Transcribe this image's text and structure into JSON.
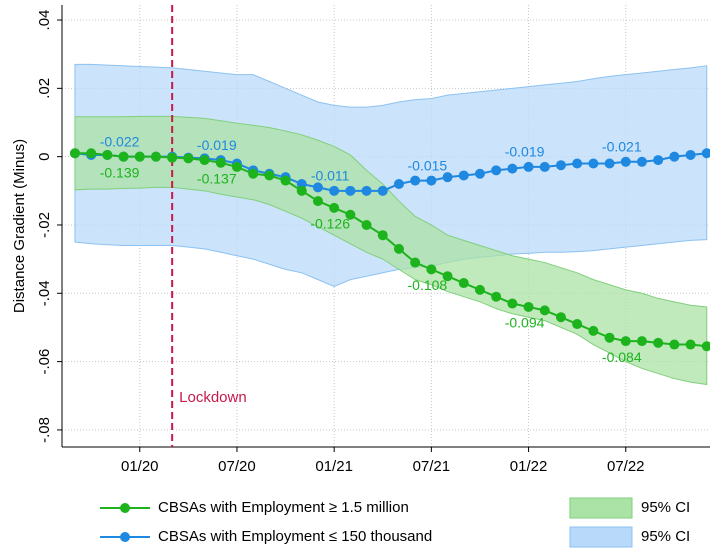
{
  "chart_data": {
    "type": "line",
    "ylabel": "Distance Gradient (Minus)",
    "x": [
      -4,
      -3,
      -2,
      -1,
      0,
      1,
      2,
      3,
      4,
      5,
      6,
      7,
      8,
      9,
      10,
      11,
      12,
      13,
      14,
      15,
      16,
      17,
      18,
      19,
      20,
      21,
      22,
      23,
      24,
      25,
      26,
      27,
      28,
      29,
      30,
      31,
      32,
      33,
      34,
      35
    ],
    "xlim": [
      -4.8,
      35.2
    ],
    "xticks": [
      {
        "value": 0,
        "label": "01/20"
      },
      {
        "value": 6,
        "label": "07/20"
      },
      {
        "value": 12,
        "label": "01/21"
      },
      {
        "value": 18,
        "label": "07/21"
      },
      {
        "value": 24,
        "label": "01/22"
      },
      {
        "value": 30,
        "label": "07/22"
      }
    ],
    "ylim": [
      -0.085,
      0.0444
    ],
    "yticks": [
      {
        "value": 0.04,
        "label": ".04"
      },
      {
        "value": 0.02,
        "label": ".02"
      },
      0,
      {
        "value": -0.02,
        "label": "-.02"
      },
      {
        "value": -0.04,
        "label": "-.04"
      },
      {
        "value": -0.06,
        "label": "-.06"
      },
      {
        "value": -0.08,
        "label": "-.08"
      }
    ],
    "grid": true,
    "legend": "bottom",
    "vline": {
      "x": 2,
      "label": "Lockdown",
      "color": "#c8194b"
    },
    "bands": [
      {
        "name": "95% CI",
        "color": "#b9d9fa",
        "edge": "#8cc2f2",
        "upper": [
          0.027,
          0.027,
          0.0268,
          0.0266,
          0.0264,
          0.0262,
          0.026,
          0.0255,
          0.025,
          0.0245,
          0.024,
          0.024,
          0.022,
          0.02,
          0.018,
          0.016,
          0.015,
          0.0145,
          0.0145,
          0.015,
          0.016,
          0.0167,
          0.017,
          0.018,
          0.0185,
          0.019,
          0.0195,
          0.02,
          0.0205,
          0.021,
          0.0215,
          0.022,
          0.0228,
          0.0235,
          0.024,
          0.0245,
          0.025,
          0.0255,
          0.026,
          0.0266
        ],
        "lower": [
          -0.025,
          -0.0255,
          -0.0258,
          -0.026,
          -0.026,
          -0.026,
          -0.026,
          -0.0265,
          -0.027,
          -0.028,
          -0.029,
          -0.03,
          -0.0315,
          -0.033,
          -0.034,
          -0.036,
          -0.038,
          -0.036,
          -0.035,
          -0.034,
          -0.033,
          -0.0325,
          -0.032,
          -0.031,
          -0.03,
          -0.0295,
          -0.029,
          -0.0285,
          -0.0283,
          -0.028,
          -0.028,
          -0.0278,
          -0.0275,
          -0.027,
          -0.0265,
          -0.026,
          -0.0255,
          -0.025,
          -0.0245,
          -0.0243
        ]
      },
      {
        "name": "95% CI",
        "color": "#abe2a6",
        "edge": "#80d07c",
        "upper": [
          0.0117,
          0.0117,
          0.0117,
          0.0117,
          0.0118,
          0.0118,
          0.0118,
          0.0115,
          0.0112,
          0.0105,
          0.0098,
          0.0092,
          0.0085,
          0.0075,
          0.0064,
          0.0048,
          0.003,
          0.0005,
          -0.004,
          -0.008,
          -0.013,
          -0.0175,
          -0.02,
          -0.023,
          -0.0245,
          -0.026,
          -0.0275,
          -0.029,
          -0.03,
          -0.031,
          -0.0325,
          -0.034,
          -0.036,
          -0.0375,
          -0.039,
          -0.04,
          -0.0415,
          -0.0425,
          -0.0435,
          -0.044
        ],
        "lower": [
          -0.0097,
          -0.0095,
          -0.0095,
          -0.0093,
          -0.0092,
          -0.009,
          -0.009,
          -0.0095,
          -0.01,
          -0.011,
          -0.0118,
          -0.0126,
          -0.014,
          -0.016,
          -0.018,
          -0.0205,
          -0.023,
          -0.0255,
          -0.028,
          -0.03,
          -0.033,
          -0.036,
          -0.0375,
          -0.0395,
          -0.041,
          -0.0425,
          -0.0445,
          -0.046,
          -0.047,
          -0.048,
          -0.05,
          -0.052,
          -0.055,
          -0.0575,
          -0.06,
          -0.062,
          -0.0635,
          -0.065,
          -0.066,
          -0.0667
        ]
      }
    ],
    "series": [
      {
        "name": "CBSAs with Employment ≤ 150 thousand",
        "color": "#1f88e0",
        "label_side": "above",
        "values": [
          0.001,
          0.0005,
          0.0005,
          0,
          0,
          0,
          0,
          -0.0003,
          -0.0005,
          -0.001,
          -0.002,
          -0.004,
          -0.005,
          -0.006,
          -0.008,
          -0.009,
          -0.01,
          -0.01,
          -0.01,
          -0.01,
          -0.008,
          -0.007,
          -0.007,
          -0.006,
          -0.0055,
          -0.005,
          -0.004,
          -0.0035,
          -0.003,
          -0.003,
          -0.0025,
          -0.002,
          -0.002,
          -0.002,
          -0.0015,
          -0.0015,
          -0.001,
          0,
          0.0005,
          0.001
        ],
        "labels": [
          {
            "x": -1,
            "text": "-0.022"
          },
          {
            "x": 5,
            "text": "-0.019"
          },
          {
            "x": 12,
            "text": "-0.011"
          },
          {
            "x": 18,
            "text": "-0.015"
          },
          {
            "x": 24,
            "text": "-0.019"
          },
          {
            "x": 30,
            "text": "-0.021"
          }
        ]
      },
      {
        "name": "CBSAs with Employment ≥ 1.5 million",
        "color": "#1db31d",
        "label_side": "below",
        "values": [
          0.001,
          0.001,
          0.0005,
          0,
          0,
          0,
          -0.0003,
          -0.0005,
          -0.001,
          -0.0018,
          -0.003,
          -0.005,
          -0.0055,
          -0.007,
          -0.01,
          -0.013,
          -0.015,
          -0.017,
          -0.02,
          -0.023,
          -0.027,
          -0.031,
          -0.033,
          -0.035,
          -0.037,
          -0.039,
          -0.041,
          -0.043,
          -0.044,
          -0.045,
          -0.047,
          -0.049,
          -0.051,
          -0.053,
          -0.054,
          -0.054,
          -0.0545,
          -0.055,
          -0.055,
          -0.0555
        ],
        "labels": [
          {
            "x": -1,
            "text": "-0.139"
          },
          {
            "x": 5,
            "text": "-0.137"
          },
          {
            "x": 12,
            "text": "-0.126"
          },
          {
            "x": 18,
            "text": "-0.108"
          },
          {
            "x": 24,
            "text": "-0.094"
          },
          {
            "x": 30,
            "text": "-0.084"
          }
        ]
      }
    ]
  }
}
